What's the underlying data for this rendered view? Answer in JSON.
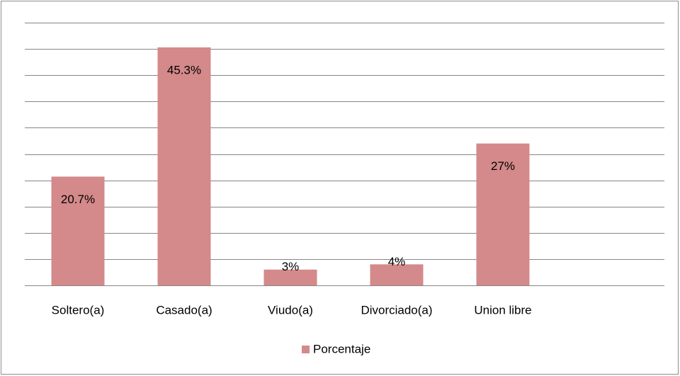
{
  "chart_data": {
    "type": "bar",
    "categories": [
      "Soltero(a)",
      "Casado(a)",
      "Viudo(a)",
      "Divorciado(a)",
      "Union libre"
    ],
    "series": [
      {
        "name": "Porcentaje",
        "color": "#d4898a",
        "values": [
          20.7,
          45.3,
          3,
          4,
          27
        ],
        "value_labels": [
          "20.7%",
          "45.3%",
          "3%",
          "4%",
          "27%"
        ]
      }
    ],
    "ylim": [
      0,
      50
    ],
    "yticks": [
      0,
      5,
      10,
      15,
      20,
      25,
      30,
      35,
      40,
      45,
      50
    ],
    "grid": true,
    "legend": "bottom"
  }
}
